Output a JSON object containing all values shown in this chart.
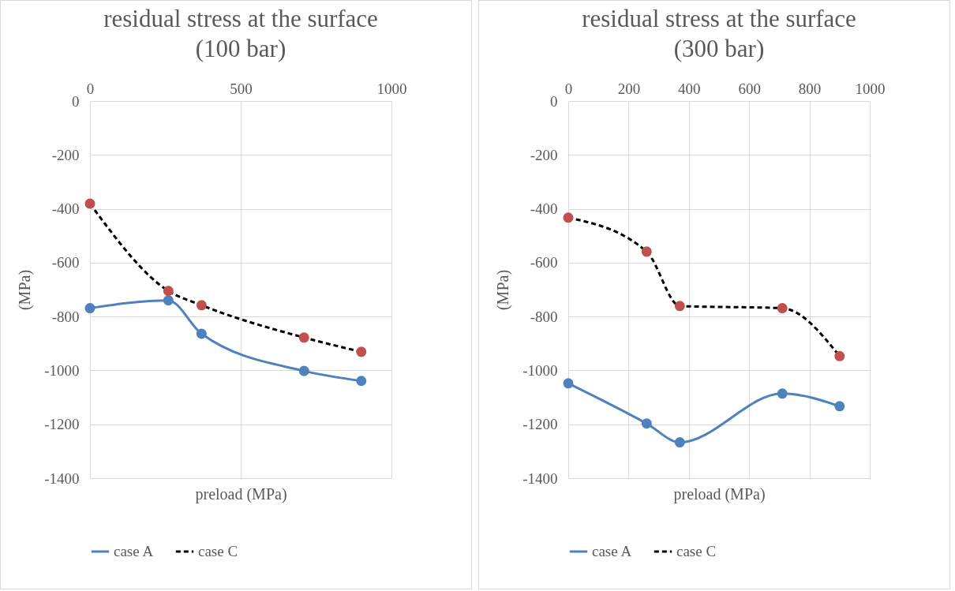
{
  "chart_data": [
    {
      "type": "line",
      "title": "residual stress at the surface\n(100 bar)",
      "xlabel": "preload (MPa)",
      "ylabel": "(MPa)",
      "x": [
        0,
        260,
        370,
        710,
        900
      ],
      "xlim": [
        0,
        1000
      ],
      "xticks": [
        0,
        500,
        1000
      ],
      "ylim": [
        -1400,
        0
      ],
      "yticks": [
        0,
        -200,
        -400,
        -600,
        -800,
        -1000,
        -1200,
        -1400
      ],
      "grid": true,
      "legend": "bottom",
      "marker": "circle",
      "series": [
        {
          "name": "case A",
          "color": "#4f81bd",
          "line_style": "solid",
          "values": [
            -769,
            -740,
            -864,
            -1002,
            -1039
          ]
        },
        {
          "name": "case C",
          "color": "#000000",
          "colors": [
            "#c0504d",
            "#c0504d",
            "#c0504d",
            "#c0504d",
            "#c0504d"
          ],
          "line_style": "dashed",
          "values": [
            -381,
            -705,
            -758,
            -878,
            -931
          ]
        }
      ]
    },
    {
      "type": "line",
      "title": "residual stress at the surface\n(300 bar)",
      "xlabel": "preload (MPa)",
      "ylabel": "(MPa)",
      "x": [
        0,
        260,
        370,
        710,
        900
      ],
      "xlim": [
        0,
        1000
      ],
      "xticks": [
        0,
        200,
        400,
        600,
        800,
        1000
      ],
      "ylim": [
        -1400,
        0
      ],
      "yticks": [
        0,
        -200,
        -400,
        -600,
        -800,
        -1000,
        -1200,
        -1400
      ],
      "grid": true,
      "legend": "bottom",
      "marker": "circle",
      "series": [
        {
          "name": "case A",
          "color": "#4f81bd",
          "line_style": "solid",
          "values": [
            -1048,
            -1197,
            -1267,
            -1086,
            -1133
          ]
        },
        {
          "name": "case C",
          "color": "#000000",
          "colors": [
            "#c0504d",
            "#c0504d",
            "#c0504d",
            "#c0504d",
            "#c0504d"
          ],
          "line_style": "dashed",
          "values": [
            -433,
            -559,
            -761,
            -769,
            -947
          ]
        }
      ]
    }
  ]
}
